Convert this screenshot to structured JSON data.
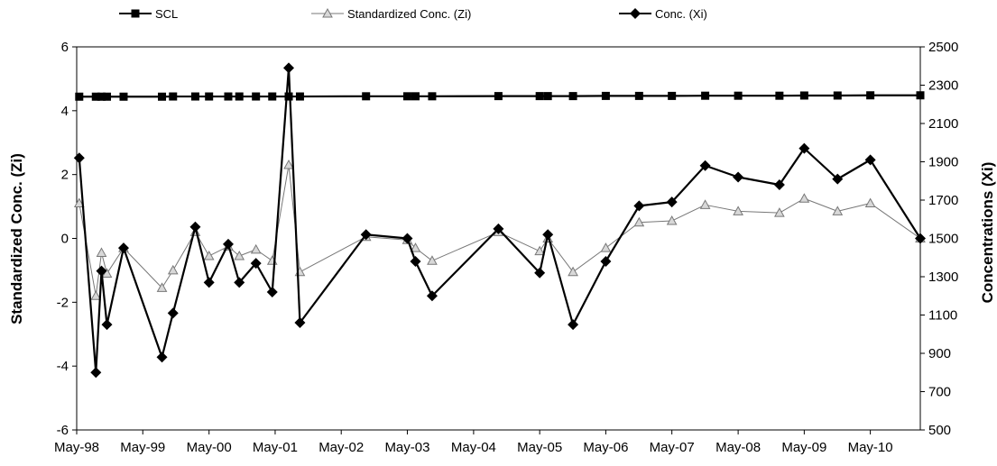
{
  "chart_data": {
    "type": "line",
    "legend": {
      "position": "top",
      "entries": [
        {
          "label": "SCL",
          "marker": "square"
        },
        {
          "label": "Standardized Conc. (Zi)",
          "marker": "triangle"
        },
        {
          "label": "Conc. (Xi)",
          "marker": "diamond"
        }
      ]
    },
    "x_axis": {
      "type": "date",
      "range": [
        "1998-05-01",
        "2011-02-01"
      ],
      "tick_dates": [
        "1998-05-01",
        "1999-05-01",
        "2000-05-01",
        "2001-05-01",
        "2002-05-01",
        "2003-05-01",
        "2004-05-01",
        "2005-05-01",
        "2006-05-01",
        "2007-05-01",
        "2008-05-01",
        "2009-05-01",
        "2010-05-01"
      ],
      "tick_labels": [
        "May-98",
        "May-99",
        "May-00",
        "May-01",
        "May-02",
        "May-03",
        "May-04",
        "May-05",
        "May-06",
        "May-07",
        "May-08",
        "May-09",
        "May-10"
      ]
    },
    "y_left": {
      "label": "Standardized Conc. (Zi)",
      "range": [
        -6,
        6
      ],
      "ticks": [
        -6,
        -4,
        -2,
        0,
        2,
        4,
        6
      ]
    },
    "y_right": {
      "label": "Concentrations (Xi)",
      "range": [
        500,
        2500
      ],
      "ticks": [
        500,
        700,
        900,
        1100,
        1300,
        1500,
        1700,
        1900,
        2100,
        2300,
        2500
      ]
    },
    "grid": false,
    "series": [
      {
        "name": "SCL",
        "axis": "right",
        "color": "#000000",
        "points": [
          [
            "1998-05-15",
            2240
          ],
          [
            "1998-08-15",
            2240
          ],
          [
            "1998-09-15",
            2240
          ],
          [
            "1998-10-15",
            2240
          ],
          [
            "1999-01-15",
            2240
          ],
          [
            "1999-08-15",
            2240
          ],
          [
            "1999-10-15",
            2241
          ],
          [
            "2000-02-15",
            2241
          ],
          [
            "2000-05-01",
            2241
          ],
          [
            "2000-08-15",
            2241
          ],
          [
            "2000-10-15",
            2241
          ],
          [
            "2001-01-15",
            2241
          ],
          [
            "2001-04-15",
            2241
          ],
          [
            "2001-07-15",
            2241
          ],
          [
            "2001-09-15",
            2241
          ],
          [
            "2002-09-15",
            2242
          ],
          [
            "2003-05-01",
            2242
          ],
          [
            "2003-06-15",
            2242
          ],
          [
            "2003-09-15",
            2242
          ],
          [
            "2004-09-15",
            2243
          ],
          [
            "2005-05-01",
            2243
          ],
          [
            "2005-06-15",
            2243
          ],
          [
            "2005-11-01",
            2243
          ],
          [
            "2006-05-01",
            2244
          ],
          [
            "2006-11-01",
            2244
          ],
          [
            "2007-05-01",
            2244
          ],
          [
            "2007-11-01",
            2245
          ],
          [
            "2008-05-01",
            2245
          ],
          [
            "2008-12-15",
            2245
          ],
          [
            "2009-05-01",
            2246
          ],
          [
            "2009-11-01",
            2246
          ],
          [
            "2010-05-01",
            2247
          ],
          [
            "2011-02-01",
            2247
          ]
        ]
      },
      {
        "name": "Standardized Conc. (Zi)",
        "axis": "left",
        "color": "#777777",
        "points": [
          [
            "1998-05-15",
            1.1
          ],
          [
            "1998-08-15",
            -1.8
          ],
          [
            "1998-09-15",
            -0.45
          ],
          [
            "1998-10-15",
            -1.1
          ],
          [
            "1999-01-15",
            -0.3
          ],
          [
            "1999-08-15",
            -1.55
          ],
          [
            "1999-10-15",
            -1.0
          ],
          [
            "2000-02-15",
            0.2
          ],
          [
            "2000-05-01",
            -0.55
          ],
          [
            "2000-08-15",
            -0.25
          ],
          [
            "2000-10-15",
            -0.55
          ],
          [
            "2001-01-15",
            -0.35
          ],
          [
            "2001-04-15",
            -0.7
          ],
          [
            "2001-07-15",
            2.3
          ],
          [
            "2001-09-15",
            -1.05
          ],
          [
            "2002-09-15",
            0.05
          ],
          [
            "2003-05-01",
            -0.05
          ],
          [
            "2003-06-15",
            -0.3
          ],
          [
            "2003-09-15",
            -0.7
          ],
          [
            "2004-09-15",
            0.2
          ],
          [
            "2005-05-01",
            -0.4
          ],
          [
            "2005-06-15",
            0.0
          ],
          [
            "2005-11-01",
            -1.05
          ],
          [
            "2006-05-01",
            -0.3
          ],
          [
            "2006-11-01",
            0.5
          ],
          [
            "2007-05-01",
            0.55
          ],
          [
            "2007-11-01",
            1.05
          ],
          [
            "2008-05-01",
            0.85
          ],
          [
            "2008-12-15",
            0.8
          ],
          [
            "2009-05-01",
            1.25
          ],
          [
            "2009-11-01",
            0.85
          ],
          [
            "2010-05-01",
            1.1
          ],
          [
            "2011-02-01",
            0.0
          ]
        ]
      },
      {
        "name": "Conc. (Xi)",
        "axis": "right",
        "color": "#000000",
        "points": [
          [
            "1998-05-15",
            1920
          ],
          [
            "1998-08-15",
            800
          ],
          [
            "1998-09-15",
            1330
          ],
          [
            "1998-10-15",
            1050
          ],
          [
            "1999-01-15",
            1450
          ],
          [
            "1999-08-15",
            880
          ],
          [
            "1999-10-15",
            1110
          ],
          [
            "2000-02-15",
            1560
          ],
          [
            "2000-05-01",
            1270
          ],
          [
            "2000-08-15",
            1470
          ],
          [
            "2000-10-15",
            1270
          ],
          [
            "2001-01-15",
            1370
          ],
          [
            "2001-04-15",
            1220
          ],
          [
            "2001-07-15",
            2390
          ],
          [
            "2001-09-15",
            1060
          ],
          [
            "2002-09-15",
            1520
          ],
          [
            "2003-05-01",
            1500
          ],
          [
            "2003-06-15",
            1380
          ],
          [
            "2003-09-15",
            1200
          ],
          [
            "2004-09-15",
            1550
          ],
          [
            "2005-05-01",
            1320
          ],
          [
            "2005-06-15",
            1520
          ],
          [
            "2005-11-01",
            1050
          ],
          [
            "2006-05-01",
            1380
          ],
          [
            "2006-11-01",
            1670
          ],
          [
            "2007-05-01",
            1690
          ],
          [
            "2007-11-01",
            1880
          ],
          [
            "2008-05-01",
            1820
          ],
          [
            "2008-12-15",
            1780
          ],
          [
            "2009-05-01",
            1970
          ],
          [
            "2009-11-01",
            1810
          ],
          [
            "2010-05-01",
            1910
          ],
          [
            "2011-02-01",
            1500
          ]
        ]
      }
    ]
  }
}
